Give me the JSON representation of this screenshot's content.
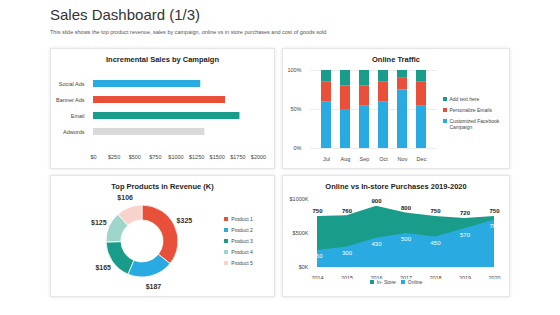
{
  "title": "Sales Dashboard (1/3)",
  "subtitle": "This slide shows the top product revenue, sales by campaign, online vs in store purchases and cost of goods sold",
  "chart_data": [
    {
      "type": "bar",
      "title": "Incremental Sales by Campaign",
      "orientation": "horizontal",
      "categories": [
        "Social Ads",
        "Banner Ads",
        "Email",
        "Adwords"
      ],
      "values": [
        1300,
        1600,
        1775,
        1350
      ],
      "colors": [
        "#29abe2",
        "#e8503a",
        "#1a9c8a",
        "#d9d9d9"
      ],
      "xlim": [
        0,
        2000
      ],
      "xticks": [
        {
          "value": 0,
          "label": "$0"
        },
        {
          "value": 250,
          "label": "$250"
        },
        {
          "value": 500,
          "label": "$500"
        },
        {
          "value": 750,
          "label": "$750"
        },
        {
          "value": 1000,
          "label": "$1000"
        },
        {
          "value": 1250,
          "label": "$1250"
        },
        {
          "value": 1500,
          "label": "$1500"
        },
        {
          "value": 1750,
          "label": "$1750"
        },
        {
          "value": 2000,
          "label": "$2000"
        }
      ],
      "grid": false
    },
    {
      "type": "bar",
      "title": "Online Traffic",
      "stacked": true,
      "categories": [
        "Jul",
        "Aug",
        "Sep",
        "Oct",
        "Nov",
        "Dec"
      ],
      "series": [
        {
          "name": "Customized Facebook Campaign",
          "color": "#29abe2",
          "values": [
            60,
            50,
            55,
            60,
            75,
            55
          ]
        },
        {
          "name": "Personalize Emails",
          "color": "#e8503a",
          "values": [
            25,
            30,
            25,
            25,
            15,
            30
          ]
        },
        {
          "name": "Add text here",
          "color": "#1a9c8a",
          "values": [
            15,
            20,
            20,
            15,
            10,
            15
          ]
        }
      ],
      "ylim": [
        0,
        100
      ],
      "yticks": [
        {
          "value": 0,
          "label": "0%"
        },
        {
          "value": 50,
          "label": "50%"
        },
        {
          "value": 100,
          "label": "100%"
        }
      ],
      "grid": true,
      "legend": "right"
    },
    {
      "type": "pie",
      "title": "Top Products in Revenue (K)",
      "categories": [
        "Product 1",
        "Product 2",
        "Product 3",
        "Product 4",
        "Product 5"
      ],
      "values": [
        325,
        187,
        165,
        125,
        106
      ],
      "value_labels": [
        "$325",
        "$187",
        "$165",
        "$125",
        "$106"
      ],
      "colors": [
        "#e8503a",
        "#29abe2",
        "#1a9c8a",
        "#9fd6cc",
        "#f8d3cc"
      ],
      "data_labels": true,
      "legend": "right"
    },
    {
      "type": "area",
      "title": "Online vs In-store Purchases 2019-2020",
      "x": [
        2014,
        2015,
        2016,
        2017,
        2018,
        2019,
        2020
      ],
      "series": [
        {
          "name": "In- Store",
          "color": "#1a9c8a",
          "values": [
            750,
            760,
            900,
            800,
            750,
            720,
            750
          ]
        },
        {
          "name": "Online",
          "color": "#29abe2",
          "values": [
            250,
            300,
            430,
            500,
            450,
            570,
            700
          ]
        }
      ],
      "xlim": [
        2014,
        2020
      ],
      "xticks": [
        2014,
        2015,
        2016,
        2017,
        2018,
        2019,
        2020
      ],
      "ylim": [
        0,
        1000
      ],
      "yticks": [
        {
          "value": 0,
          "label": "$0K"
        },
        {
          "value": 500,
          "label": "$500K"
        },
        {
          "value": 1000,
          "label": "$1000K"
        }
      ],
      "grid": false,
      "data_labels": true,
      "legend": "bottom"
    }
  ]
}
